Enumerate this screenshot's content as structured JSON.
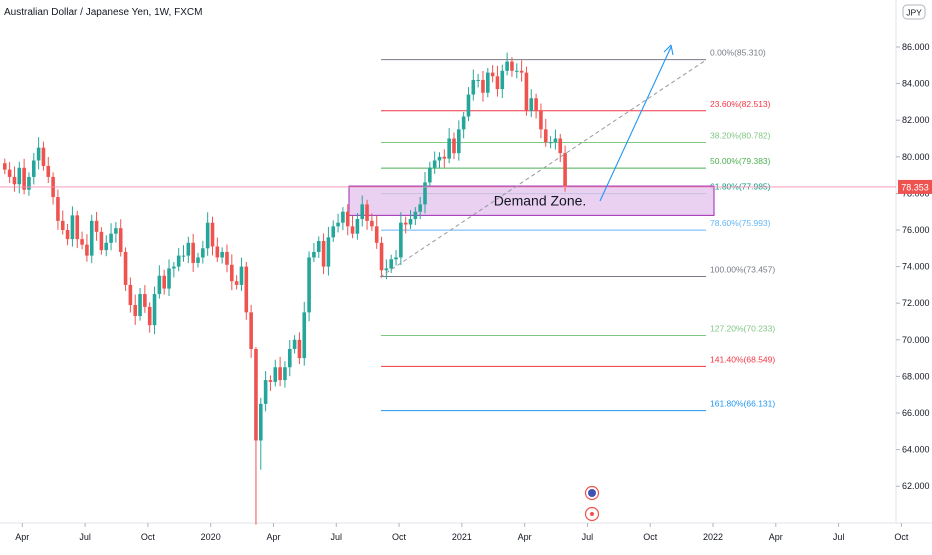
{
  "header": {
    "title": "Australian Dollar / Japanese Yen, 1W, FXCM"
  },
  "currency_badge": "JPY",
  "current_price": {
    "label": "78.353",
    "value": 78.353,
    "color": "#ef5350"
  },
  "annotation": {
    "label": "Demand Zone.",
    "zone_low": 76.8,
    "zone_high": 78.4
  },
  "colors": {
    "up": "#26a69a",
    "down": "#ef5350",
    "zone_fill": "#e6c9ee",
    "zone_stroke": "#9c27b0",
    "arrow": "#2196f3",
    "price_line": "#f48fb1"
  },
  "chart_data": {
    "type": "candlestick",
    "title": "Australian Dollar / Japanese Yen, 1W, FXCM",
    "ylim": [
      60.0,
      88.0
    ],
    "yticks": [
      62.0,
      64.0,
      66.0,
      68.0,
      70.0,
      72.0,
      74.0,
      76.0,
      78.0,
      80.0,
      82.0,
      84.0,
      86.0
    ],
    "ytick_labels": [
      "62.000",
      "64.000",
      "66.000",
      "68.000",
      "70.000",
      "72.000",
      "74.000",
      "76.000",
      "78.000",
      "80.000",
      "82.000",
      "84.000",
      "86.000"
    ],
    "xticks": [
      {
        "label": "Apr",
        "week": 4
      },
      {
        "label": "Jul",
        "week": 17
      },
      {
        "label": "Oct",
        "week": 30
      },
      {
        "label": "2020",
        "week": 43
      },
      {
        "label": "Apr",
        "week": 56
      },
      {
        "label": "Jul",
        "week": 69
      },
      {
        "label": "Oct",
        "week": 82
      },
      {
        "label": "2021",
        "week": 95
      },
      {
        "label": "Apr",
        "week": 108
      },
      {
        "label": "Jul",
        "week": 121
      },
      {
        "label": "Oct",
        "week": 134
      },
      {
        "label": "2022",
        "week": 147
      },
      {
        "label": "Apr",
        "week": 160
      },
      {
        "label": "Jul",
        "week": 173
      },
      {
        "label": "Oct",
        "week": 186
      }
    ],
    "closes": [
      79.3,
      78.9,
      78.5,
      79.4,
      78.2,
      78.9,
      79.8,
      80.5,
      79.5,
      78.9,
      77.8,
      76.5,
      76.0,
      75.5,
      76.8,
      75.5,
      75.2,
      74.6,
      76.5,
      75.9,
      74.9,
      75.3,
      75.8,
      76.1,
      74.8,
      73.0,
      71.9,
      71.3,
      72.5,
      71.8,
      70.8,
      72.5,
      73.5,
      72.8,
      73.9,
      74.0,
      74.6,
      74.6,
      75.3,
      74.2,
      74.5,
      75.0,
      76.4,
      75.1,
      74.5,
      74.8,
      74.1,
      73.2,
      73.0,
      74.0,
      71.5,
      69.5,
      64.5,
      66.5,
      67.8,
      67.7,
      68.5,
      67.8,
      68.5,
      69.5,
      70.0,
      69.0,
      71.5,
      74.5,
      74.8,
      75.4,
      74.0,
      75.6,
      76.2,
      76.4,
      77.0,
      76.2,
      75.8,
      76.6,
      77.4,
      76.5,
      76.2,
      75.3,
      73.8,
      73.9,
      74.4,
      74.5,
      76.4,
      76.3,
      76.6,
      77.0,
      77.4,
      78.6,
      79.4,
      79.8,
      80.0,
      79.9,
      81.0,
      80.2,
      81.5,
      82.2,
      83.4,
      84.2,
      84.2,
      83.5,
      84.6,
      84.4,
      83.7,
      84.7,
      85.2,
      84.7,
      84.7,
      84.6,
      82.5,
      83.2,
      82.5,
      81.5,
      80.8,
      80.8,
      81.0,
      80.2,
      78.35
    ],
    "fibonacci": [
      {
        "label": "0.00%(85.310)",
        "level": 85.31,
        "color": "#787b86"
      },
      {
        "label": "23.60%(82.513)",
        "level": 82.513,
        "color": "#f23645"
      },
      {
        "label": "38.20%(80.782)",
        "level": 80.782,
        "color": "#81c784"
      },
      {
        "label": "50.00%(79.383)",
        "level": 79.383,
        "color": "#4caf50"
      },
      {
        "label": "61.80%(77.985)",
        "level": 77.985,
        "color": "#089981"
      },
      {
        "label": "78.60%(75.993)",
        "level": 75.993,
        "color": "#64b5f6"
      },
      {
        "label": "100.00%(73.457)",
        "level": 73.457,
        "color": "#787b86"
      },
      {
        "label": "127.20%(70.233)",
        "level": 70.233,
        "color": "#81c784"
      },
      {
        "label": "141.40%(68.549)",
        "level": 68.549,
        "color": "#f23645"
      },
      {
        "label": "161.80%(66.131)",
        "level": 66.131,
        "color": "#2196f3"
      }
    ]
  }
}
